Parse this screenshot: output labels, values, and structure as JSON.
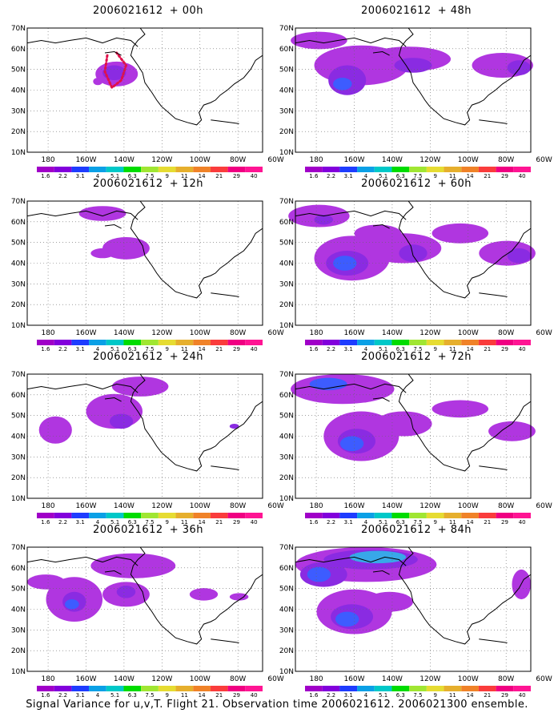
{
  "panels": [
    {
      "id": "p00",
      "title": "2006021612",
      "lead": "+ 00h",
      "col": 0,
      "row": 0
    },
    {
      "id": "p48",
      "title": "2006021612",
      "lead": "+ 48h",
      "col": 1,
      "row": 0
    },
    {
      "id": "p12",
      "title": "2006021612",
      "lead": "+ 12h",
      "col": 0,
      "row": 1
    },
    {
      "id": "p60",
      "title": "2006021612",
      "lead": "+ 60h",
      "col": 1,
      "row": 1
    },
    {
      "id": "p24",
      "title": "2006021612",
      "lead": "+ 24h",
      "col": 0,
      "row": 2
    },
    {
      "id": "p72",
      "title": "2006021612",
      "lead": "+ 72h",
      "col": 1,
      "row": 2
    },
    {
      "id": "p36",
      "title": "2006021612",
      "lead": "+ 36h",
      "col": 0,
      "row": 3
    },
    {
      "id": "p84",
      "title": "2006021612",
      "lead": "+ 84h",
      "col": 1,
      "row": 3
    }
  ],
  "axes": {
    "lat_labels": [
      "70N",
      "60N",
      "50N",
      "40N",
      "30N",
      "20N",
      "10N"
    ],
    "lon_labels": [
      "180",
      "160W",
      "140W",
      "120W",
      "100W",
      "80W",
      "60W"
    ]
  },
  "colorbar": {
    "levels": [
      "1.6",
      "2.2",
      "3.1",
      "4",
      "5.1",
      "6.3",
      "7.5",
      "9",
      "11",
      "14",
      "21",
      "29",
      "40"
    ],
    "colors": [
      "#a000c8",
      "#8200dc",
      "#1e3cff",
      "#0aa0e6",
      "#00c8c8",
      "#00dc00",
      "#a0e632",
      "#e6dc32",
      "#e6af2d",
      "#f08228",
      "#fa3c3c",
      "#f00082",
      "#ff1493"
    ]
  },
  "overlay_colors": {
    "light": "#b036e0",
    "mid": "#8a2be2",
    "blue": "#3d5cff",
    "cyan": "#38a8e8",
    "flight": "#e0104a"
  },
  "footer": "Signal Variance for u,v,T. Flight 21. Observation time 2006021612. 2006021300 ensemble."
}
